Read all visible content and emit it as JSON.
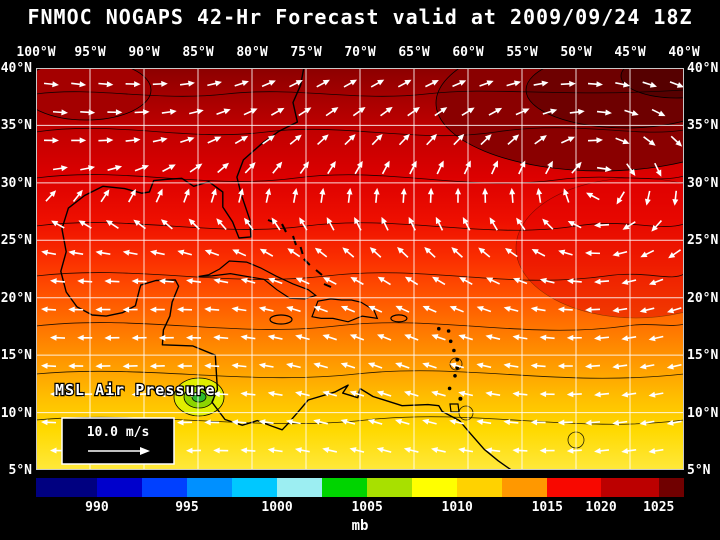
{
  "header": {
    "title": "FNMOC NOGAPS 42-Hr Forecast valid at 2009/09/24 18Z"
  },
  "map": {
    "field_label": "MSL Air Pressure",
    "wind_legend_label": "10.0 m/s",
    "lon_labels": [
      "100°W",
      "95°W",
      "90°W",
      "85°W",
      "80°W",
      "75°W",
      "70°W",
      "65°W",
      "60°W",
      "55°W",
      "50°W",
      "45°W",
      "40°W"
    ],
    "lat_labels_left": [
      "40°N",
      "35°N",
      "30°N",
      "25°N",
      "20°N",
      "15°N",
      "10°N",
      "5°N"
    ],
    "lat_labels_right": [
      "40°N",
      "35°N",
      "30°N",
      "25°N",
      "20°N",
      "15°N",
      "10°N",
      "5°N"
    ]
  },
  "colorbar": {
    "unit_label": "mb",
    "ticks": [
      {
        "label": "990",
        "pct": 9.4
      },
      {
        "label": "995",
        "pct": 23.3
      },
      {
        "label": "1000",
        "pct": 37.2
      },
      {
        "label": "1005",
        "pct": 51.1
      },
      {
        "label": "1010",
        "pct": 65.0
      },
      {
        "label": "1015",
        "pct": 78.9
      },
      {
        "label": "1020",
        "pct": 87.2
      },
      {
        "label": "1025",
        "pct": 96.1
      }
    ],
    "boundaries_pct": [
      0,
      9.4,
      16.4,
      23.3,
      30.2,
      37.2,
      44.1,
      51.1,
      58.0,
      65.0,
      71.9,
      78.9,
      87.2,
      96.1,
      100
    ],
    "segment_colors": [
      "#000080",
      "#0000cc",
      "#0040ff",
      "#0090ff",
      "#00c8ff",
      "#9ceef2",
      "#00d400",
      "#a8e000",
      "#ffff00",
      "#ffd200",
      "#ff9800",
      "#f80800",
      "#bc0000",
      "#700000"
    ]
  }
}
